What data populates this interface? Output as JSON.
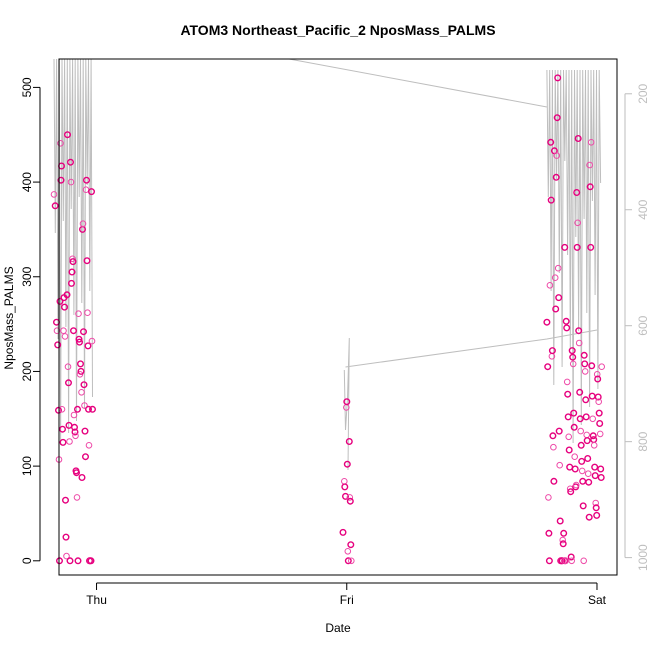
{
  "chart_data": {
    "type": "scatter",
    "title": "ATOM3 Northeast_Pacific_2 NposMass_PALMS",
    "xlabel": "Date",
    "ylabel": "NposMass_PALMS",
    "x_ticks": [
      {
        "label": "Thu",
        "t": 0.0
      },
      {
        "label": "Fri",
        "t": 1.0
      },
      {
        "label": "Sat",
        "t": 2.0
      }
    ],
    "x_range_days": [
      -0.15,
      2.08
    ],
    "ylim": [
      -15,
      530
    ],
    "y_ticks": [
      0,
      100,
      200,
      300,
      400,
      500
    ],
    "y2_ticks": [
      200,
      400,
      600,
      800,
      1000
    ],
    "y2_range": [
      1030,
      140
    ],
    "colors": {
      "point_dark": "#e6007e",
      "point_light": "#ee4aa8",
      "line": "#bebebe",
      "axis": "#000000",
      "right_axis": "#bebebe"
    },
    "series": [
      {
        "name": "NposMass_PALMS",
        "points": [
          [
            -0.17,
            387
          ],
          [
            -0.165,
            375
          ],
          [
            -0.16,
            252
          ],
          [
            -0.158,
            243
          ],
          [
            -0.155,
            228
          ],
          [
            -0.152,
            159
          ],
          [
            -0.15,
            107
          ],
          [
            -0.148,
            0
          ],
          [
            -0.146,
            274
          ],
          [
            -0.144,
            441
          ],
          [
            -0.142,
            402
          ],
          [
            -0.14,
            417
          ],
          [
            -0.138,
            160
          ],
          [
            -0.136,
            139
          ],
          [
            -0.134,
            125
          ],
          [
            -0.132,
            243
          ],
          [
            -0.13,
            278
          ],
          [
            -0.128,
            268
          ],
          [
            -0.126,
            237
          ],
          [
            -0.124,
            64
          ],
          [
            -0.122,
            25
          ],
          [
            -0.12,
            5
          ],
          [
            -0.118,
            281
          ],
          [
            -0.116,
            450
          ],
          [
            -0.114,
            205
          ],
          [
            -0.112,
            188
          ],
          [
            -0.11,
            143
          ],
          [
            -0.108,
            126
          ],
          [
            -0.106,
            0
          ],
          [
            -0.104,
            421
          ],
          [
            -0.102,
            400
          ],
          [
            -0.1,
            293
          ],
          [
            -0.098,
            305
          ],
          [
            -0.096,
            319
          ],
          [
            -0.094,
            316
          ],
          [
            -0.092,
            243
          ],
          [
            -0.09,
            154
          ],
          [
            -0.088,
            141
          ],
          [
            -0.086,
            136
          ],
          [
            -0.084,
            132
          ],
          [
            -0.082,
            95
          ],
          [
            -0.08,
            93
          ],
          [
            -0.078,
            67
          ],
          [
            -0.076,
            160
          ],
          [
            -0.074,
            0
          ],
          [
            -0.072,
            261
          ],
          [
            -0.07,
            234
          ],
          [
            -0.068,
            231
          ],
          [
            -0.066,
            197
          ],
          [
            -0.064,
            208
          ],
          [
            -0.062,
            200
          ],
          [
            -0.06,
            178
          ],
          [
            -0.058,
            88
          ],
          [
            -0.056,
            350
          ],
          [
            -0.054,
            356
          ],
          [
            -0.052,
            242
          ],
          [
            -0.05,
            186
          ],
          [
            -0.048,
            164
          ],
          [
            -0.046,
            137
          ],
          [
            -0.044,
            110
          ],
          [
            -0.042,
            392
          ],
          [
            -0.04,
            402
          ],
          [
            -0.038,
            317
          ],
          [
            -0.036,
            262
          ],
          [
            -0.034,
            227
          ],
          [
            -0.032,
            160
          ],
          [
            -0.03,
            122
          ],
          [
            -0.028,
            0
          ],
          [
            -0.026,
            0
          ],
          [
            -0.024,
            0
          ],
          [
            -0.022,
            0
          ],
          [
            -0.02,
            390
          ],
          [
            -0.018,
            232
          ],
          [
            -0.016,
            160
          ],
          [
            0.985,
            30
          ],
          [
            0.99,
            84
          ],
          [
            0.992,
            78
          ],
          [
            0.995,
            68
          ],
          [
            0.998,
            162
          ],
          [
            1.0,
            168
          ],
          [
            1.002,
            102
          ],
          [
            1.004,
            10
          ],
          [
            1.006,
            0
          ],
          [
            1.01,
            126
          ],
          [
            1.012,
            67
          ],
          [
            1.014,
            63
          ],
          [
            1.016,
            17
          ],
          [
            1.018,
            0
          ],
          [
            1.8,
            252
          ],
          [
            1.803,
            205
          ],
          [
            1.806,
            67
          ],
          [
            1.808,
            29
          ],
          [
            1.81,
            0
          ],
          [
            1.812,
            291
          ],
          [
            1.815,
            442
          ],
          [
            1.817,
            381
          ],
          [
            1.82,
            216
          ],
          [
            1.822,
            222
          ],
          [
            1.824,
            132
          ],
          [
            1.826,
            120
          ],
          [
            1.828,
            84
          ],
          [
            1.83,
            433
          ],
          [
            1.833,
            299
          ],
          [
            1.835,
            266
          ],
          [
            1.837,
            405
          ],
          [
            1.839,
            428
          ],
          [
            1.841,
            468
          ],
          [
            1.843,
            510
          ],
          [
            1.845,
            309
          ],
          [
            1.847,
            278
          ],
          [
            1.849,
            137
          ],
          [
            1.851,
            101
          ],
          [
            1.853,
            42
          ],
          [
            1.855,
            0
          ],
          [
            1.857,
            0
          ],
          [
            1.859,
            0
          ],
          [
            1.861,
            0
          ],
          [
            1.863,
            22
          ],
          [
            1.865,
            18
          ],
          [
            1.867,
            29
          ],
          [
            1.869,
            0
          ],
          [
            1.871,
            331
          ],
          [
            1.873,
            0
          ],
          [
            1.875,
            0
          ],
          [
            1.877,
            253
          ],
          [
            1.879,
            246
          ],
          [
            1.881,
            189
          ],
          [
            1.883,
            176
          ],
          [
            1.885,
            152
          ],
          [
            1.887,
            131
          ],
          [
            1.889,
            117
          ],
          [
            1.891,
            99
          ],
          [
            1.893,
            76
          ],
          [
            1.895,
            73
          ],
          [
            1.897,
            4
          ],
          [
            1.899,
            0
          ],
          [
            1.901,
            222
          ],
          [
            1.903,
            215
          ],
          [
            1.905,
            208
          ],
          [
            1.907,
            156
          ],
          [
            1.909,
            141
          ],
          [
            1.911,
            110
          ],
          [
            1.913,
            97
          ],
          [
            1.915,
            78
          ],
          [
            1.917,
            80
          ],
          [
            1.919,
            389
          ],
          [
            1.921,
            331
          ],
          [
            1.923,
            357
          ],
          [
            1.925,
            446
          ],
          [
            1.927,
            243
          ],
          [
            1.929,
            230
          ],
          [
            1.931,
            178
          ],
          [
            1.933,
            150
          ],
          [
            1.935,
            137
          ],
          [
            1.937,
            122
          ],
          [
            1.939,
            105
          ],
          [
            1.941,
            95
          ],
          [
            1.943,
            84
          ],
          [
            1.945,
            58
          ],
          [
            1.947,
            0
          ],
          [
            1.949,
            217
          ],
          [
            1.951,
            208
          ],
          [
            1.953,
            200
          ],
          [
            1.955,
            170
          ],
          [
            1.957,
            152
          ],
          [
            1.959,
            133
          ],
          [
            1.961,
            127
          ],
          [
            1.963,
            108
          ],
          [
            1.965,
            92
          ],
          [
            1.967,
            83
          ],
          [
            1.969,
            46
          ],
          [
            1.971,
            418
          ],
          [
            1.973,
            395
          ],
          [
            1.975,
            331
          ],
          [
            1.977,
            442
          ],
          [
            1.979,
            206
          ],
          [
            1.981,
            174
          ],
          [
            1.983,
            150
          ],
          [
            1.985,
            132
          ],
          [
            1.987,
            128
          ],
          [
            1.989,
            122
          ],
          [
            1.991,
            99
          ],
          [
            1.993,
            90
          ],
          [
            1.995,
            61
          ],
          [
            1.997,
            56
          ],
          [
            1.999,
            48
          ],
          [
            2.001,
            197
          ],
          [
            2.003,
            192
          ],
          [
            2.005,
            173
          ],
          [
            2.007,
            168
          ],
          [
            2.009,
            156
          ],
          [
            2.011,
            145
          ],
          [
            2.013,
            134
          ],
          [
            2.015,
            97
          ],
          [
            2.017,
            88
          ],
          [
            2.019,
            205
          ]
        ]
      }
    ]
  }
}
